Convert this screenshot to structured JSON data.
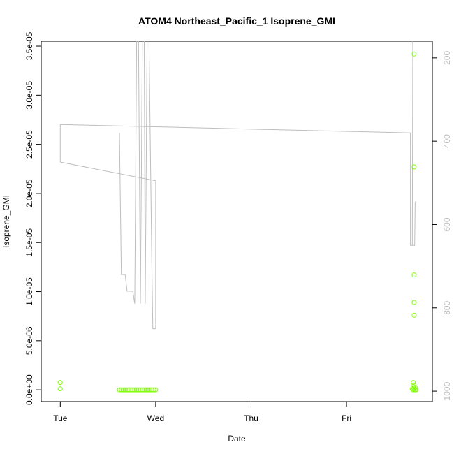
{
  "chart_data": {
    "type": "scatter",
    "title": "ATOM4 Northeast_Pacific_1 Isoprene_GMI",
    "xlabel": "Date",
    "ylabel": "Isoprene_GMI",
    "x_ticks": [
      {
        "label": "Tue",
        "value": 0
      },
      {
        "label": "Wed",
        "value": 1
      },
      {
        "label": "Thu",
        "value": 2
      },
      {
        "label": "Fri",
        "value": 3
      }
    ],
    "xlim": [
      -0.2,
      3.9
    ],
    "y_ticks": [
      {
        "label": "0.0e+00",
        "value": 0
      },
      {
        "label": "5.0e-06",
        "value": 5e-06
      },
      {
        "label": "1.0e-05",
        "value": 1e-05
      },
      {
        "label": "1.5e-05",
        "value": 1.5e-05
      },
      {
        "label": "2.0e-05",
        "value": 2e-05
      },
      {
        "label": "2.5e-05",
        "value": 2.5e-05
      },
      {
        "label": "3.0e-05",
        "value": 3e-05
      },
      {
        "label": "3.5e-05",
        "value": 3.5e-05
      }
    ],
    "ylim": [
      -1.2e-06,
      3.55e-05
    ],
    "y2_ticks": [
      {
        "label": "200",
        "value": 200
      },
      {
        "label": "400",
        "value": 400
      },
      {
        "label": "600",
        "value": 600
      },
      {
        "label": "800",
        "value": 800
      },
      {
        "label": "1000",
        "value": 1000
      }
    ],
    "y2lim": [
      1025,
      160
    ],
    "y2_reversed": true,
    "grid": false,
    "colors": {
      "points": "#7fff00",
      "line": "#bebebe",
      "axis": "#000000"
    },
    "series": [
      {
        "type": "scatter",
        "color": "#7fff00",
        "points": [
          [
            0.0,
            7.5e-07
          ],
          [
            0.0,
            1e-07
          ],
          [
            0.62,
            0
          ],
          [
            0.64,
            0
          ],
          [
            0.66,
            0
          ],
          [
            0.68,
            0
          ],
          [
            0.7,
            0
          ],
          [
            0.72,
            0
          ],
          [
            0.74,
            0
          ],
          [
            0.76,
            0
          ],
          [
            0.78,
            0
          ],
          [
            0.8,
            0
          ],
          [
            0.82,
            0
          ],
          [
            0.84,
            0
          ],
          [
            0.86,
            0
          ],
          [
            0.88,
            0
          ],
          [
            0.9,
            0
          ],
          [
            0.92,
            0
          ],
          [
            0.94,
            0
          ],
          [
            0.96,
            0
          ],
          [
            0.98,
            0
          ],
          [
            1.0,
            0
          ],
          [
            3.71,
            3.42e-05
          ],
          [
            3.71,
            2.27e-05
          ],
          [
            3.71,
            1.17e-05
          ],
          [
            3.71,
            8.9e-06
          ],
          [
            3.71,
            7.6e-06
          ],
          [
            3.7,
            7.5e-07
          ],
          [
            3.71,
            4.5e-07
          ],
          [
            3.72,
            2.5e-07
          ],
          [
            3.69,
            1e-07
          ],
          [
            3.7,
            0
          ],
          [
            3.72,
            0
          ],
          [
            3.73,
            0
          ],
          [
            3.71,
            1.5e-07
          ]
        ]
      },
      {
        "type": "line",
        "axis": "right",
        "color": "#bebebe",
        "segments": [
          [
            [
              0.0,
              450
            ],
            [
              0.0,
              360
            ],
            [
              3.67,
              380
            ],
            [
              3.67,
              650
            ],
            [
              3.69,
              650
            ],
            [
              3.695,
              160
            ]
          ],
          [
            [
              3.69,
              650
            ],
            [
              3.715,
              650
            ],
            [
              3.72,
              545
            ]
          ],
          [
            [
              0.0,
              450
            ],
            [
              1.0,
              495
            ],
            [
              1.0,
              850
            ],
            [
              0.97,
              850
            ],
            [
              0.96,
              700
            ]
          ],
          [
            [
              0.62,
              380
            ],
            [
              0.64,
              720
            ],
            [
              0.68,
              720
            ],
            [
              0.7,
              760
            ],
            [
              0.76,
              760
            ],
            [
              0.78,
              790
            ],
            [
              0.8,
              160
            ]
          ],
          [
            [
              0.82,
              160
            ],
            [
              0.84,
              790
            ],
            [
              0.86,
              160
            ]
          ],
          [
            [
              0.88,
              160
            ],
            [
              0.89,
              790
            ],
            [
              0.91,
              160
            ]
          ],
          [
            [
              0.93,
              160
            ],
            [
              0.96,
              700
            ]
          ]
        ]
      }
    ]
  }
}
